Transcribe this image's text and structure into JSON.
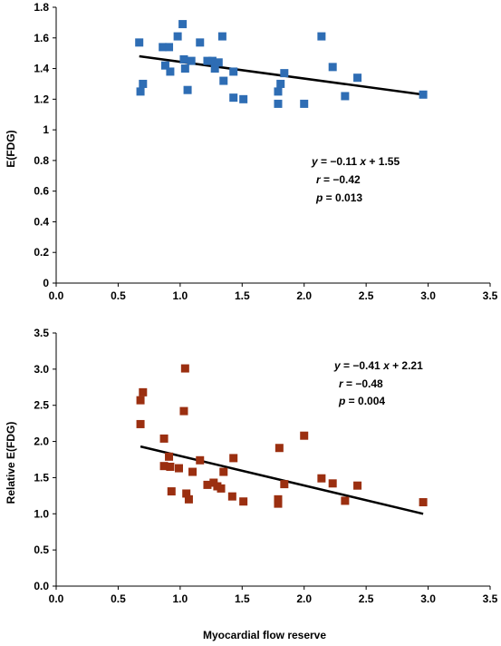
{
  "chart_data": [
    {
      "type": "scatter",
      "title": "",
      "xlabel": "",
      "ylabel": "E(FDG)",
      "xlim": [
        0,
        3.5
      ],
      "ylim": [
        0,
        1.8
      ],
      "xticks": [
        "0.0",
        "0.5",
        "1.0",
        "1.5",
        "2.0",
        "2.5",
        "3.0",
        "3.5"
      ],
      "yticks": [
        "0",
        "0.2",
        "0.4",
        "0.6",
        "0.8",
        "1",
        "1.2",
        "1.4",
        "1.6",
        "1.8"
      ],
      "grid": false,
      "marker_color": "#2e6db4",
      "points": [
        {
          "x": 0.67,
          "y": 1.57
        },
        {
          "x": 0.68,
          "y": 1.25
        },
        {
          "x": 0.7,
          "y": 1.3
        },
        {
          "x": 0.86,
          "y": 1.54
        },
        {
          "x": 0.88,
          "y": 1.42
        },
        {
          "x": 0.91,
          "y": 1.54
        },
        {
          "x": 0.92,
          "y": 1.38
        },
        {
          "x": 0.98,
          "y": 1.61
        },
        {
          "x": 1.02,
          "y": 1.69
        },
        {
          "x": 1.03,
          "y": 1.46
        },
        {
          "x": 1.04,
          "y": 1.4
        },
        {
          "x": 1.06,
          "y": 1.26
        },
        {
          "x": 1.09,
          "y": 1.45
        },
        {
          "x": 1.16,
          "y": 1.57
        },
        {
          "x": 1.22,
          "y": 1.45
        },
        {
          "x": 1.26,
          "y": 1.45
        },
        {
          "x": 1.28,
          "y": 1.4
        },
        {
          "x": 1.31,
          "y": 1.44
        },
        {
          "x": 1.34,
          "y": 1.61
        },
        {
          "x": 1.35,
          "y": 1.32
        },
        {
          "x": 1.43,
          "y": 1.21
        },
        {
          "x": 1.43,
          "y": 1.38
        },
        {
          "x": 1.51,
          "y": 1.2
        },
        {
          "x": 1.79,
          "y": 1.17
        },
        {
          "x": 1.79,
          "y": 1.25
        },
        {
          "x": 1.81,
          "y": 1.3
        },
        {
          "x": 1.84,
          "y": 1.37
        },
        {
          "x": 2.0,
          "y": 1.17
        },
        {
          "x": 2.14,
          "y": 1.61
        },
        {
          "x": 2.23,
          "y": 1.41
        },
        {
          "x": 2.33,
          "y": 1.22
        },
        {
          "x": 2.43,
          "y": 1.34
        },
        {
          "x": 2.96,
          "y": 1.23
        }
      ],
      "regression": {
        "x": [
          0.67,
          2.96
        ],
        "y": [
          1.48,
          1.23
        ]
      },
      "annotations": [
        {
          "var": "y",
          "eq": " = −0.11",
          "var2": "x",
          "rest": " + 1.55"
        },
        {
          "var": "r",
          "eq": " = −0.42"
        },
        {
          "var": "p",
          "eq": " = 0.013"
        }
      ]
    },
    {
      "type": "scatter",
      "title": "",
      "xlabel": "",
      "ylabel": "Relative E(FDG)",
      "xlim": [
        0,
        3.5
      ],
      "ylim": [
        0,
        3.5
      ],
      "xticks": [
        "0.0",
        "0.5",
        "1.0",
        "1.5",
        "2.0",
        "2.5",
        "3.0",
        "3.5"
      ],
      "yticks": [
        "0.0",
        "0.5",
        "1.0",
        "1.5",
        "2.0",
        "2.5",
        "3.0",
        "3.5"
      ],
      "grid": false,
      "marker_color": "#9b2f10",
      "points": [
        {
          "x": 0.68,
          "y": 2.57
        },
        {
          "x": 0.7,
          "y": 2.68
        },
        {
          "x": 0.68,
          "y": 2.24
        },
        {
          "x": 0.87,
          "y": 2.04
        },
        {
          "x": 0.87,
          "y": 1.66
        },
        {
          "x": 0.91,
          "y": 1.79
        },
        {
          "x": 0.92,
          "y": 1.65
        },
        {
          "x": 0.93,
          "y": 1.31
        },
        {
          "x": 0.99,
          "y": 1.63
        },
        {
          "x": 1.04,
          "y": 3.01
        },
        {
          "x": 1.03,
          "y": 2.42
        },
        {
          "x": 1.05,
          "y": 1.28
        },
        {
          "x": 1.07,
          "y": 1.2
        },
        {
          "x": 1.1,
          "y": 1.58
        },
        {
          "x": 1.16,
          "y": 1.74
        },
        {
          "x": 1.22,
          "y": 1.4
        },
        {
          "x": 1.27,
          "y": 1.43
        },
        {
          "x": 1.3,
          "y": 1.38
        },
        {
          "x": 1.33,
          "y": 1.35
        },
        {
          "x": 1.35,
          "y": 1.58
        },
        {
          "x": 1.42,
          "y": 1.24
        },
        {
          "x": 1.43,
          "y": 1.77
        },
        {
          "x": 1.51,
          "y": 1.17
        },
        {
          "x": 1.79,
          "y": 1.14
        },
        {
          "x": 1.8,
          "y": 1.91
        },
        {
          "x": 1.79,
          "y": 1.2
        },
        {
          "x": 1.84,
          "y": 1.41
        },
        {
          "x": 2.0,
          "y": 2.08
        },
        {
          "x": 2.14,
          "y": 1.49
        },
        {
          "x": 2.23,
          "y": 1.42
        },
        {
          "x": 2.33,
          "y": 1.18
        },
        {
          "x": 2.43,
          "y": 1.39
        },
        {
          "x": 2.96,
          "y": 1.16
        }
      ],
      "regression": {
        "x": [
          0.68,
          2.96
        ],
        "y": [
          1.93,
          1.0
        ]
      },
      "annotations": [
        {
          "var": "y",
          "eq": " = −0.41",
          "var2": "x",
          "rest": " + 2.21"
        },
        {
          "var": "r",
          "eq": " = −0.48"
        },
        {
          "var": "p",
          "eq": " = 0.004"
        }
      ]
    }
  ],
  "shared_xlabel": "Myocardial flow reserve",
  "regression_color": "#000000"
}
